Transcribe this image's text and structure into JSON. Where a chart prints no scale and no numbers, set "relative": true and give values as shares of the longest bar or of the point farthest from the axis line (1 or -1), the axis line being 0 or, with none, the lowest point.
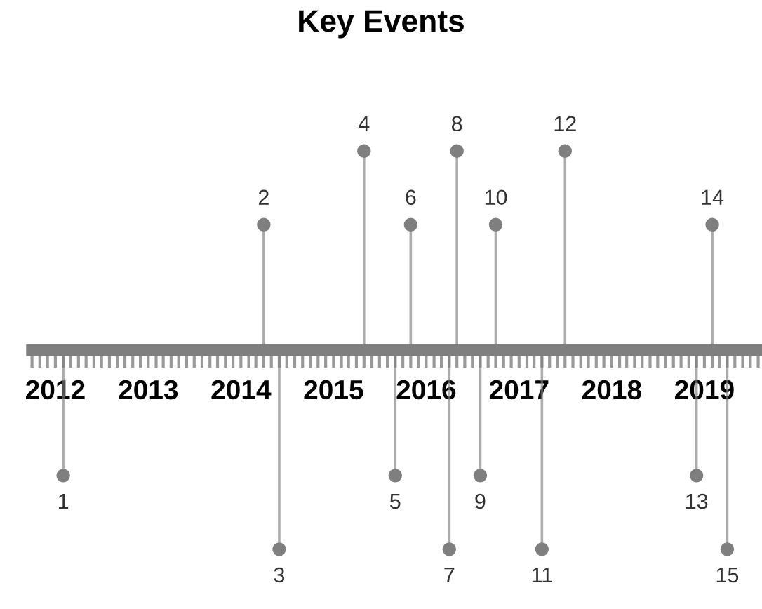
{
  "chart_data": {
    "type": "lollipop",
    "title": "Key Events",
    "relative": true,
    "x": [
      "2012-02",
      "2014-04",
      "2014-06",
      "2015-05",
      "2015-09",
      "2015-11",
      "2016-04",
      "2016-05",
      "2016-08",
      "2016-10",
      "2017-04",
      "2017-07",
      "2018-12",
      "2019-02",
      "2019-04"
    ],
    "values": [
      -0.63,
      0.63,
      -1,
      1,
      -0.63,
      0.63,
      -1,
      1,
      -0.63,
      0.63,
      -1,
      1,
      -0.63,
      0.63,
      -1
    ],
    "annotations": [
      {
        "text": "1",
        "x": "2012-02",
        "y": -0.63
      },
      {
        "text": "2",
        "x": "2014-04",
        "y": 0.63
      },
      {
        "text": "3",
        "x": "2014-06",
        "y": -1
      },
      {
        "text": "4",
        "x": "2015-05",
        "y": 1
      },
      {
        "text": "5",
        "x": "2015-09",
        "y": -0.63
      },
      {
        "text": "6",
        "x": "2015-11",
        "y": 0.63
      },
      {
        "text": "7",
        "x": "2016-04",
        "y": -1
      },
      {
        "text": "8",
        "x": "2016-05",
        "y": 1
      },
      {
        "text": "9",
        "x": "2016-08",
        "y": -0.63
      },
      {
        "text": "10",
        "x": "2016-10",
        "y": 0.63
      },
      {
        "text": "11",
        "x": "2017-04",
        "y": -1
      },
      {
        "text": "12",
        "x": "2017-07",
        "y": 1
      },
      {
        "text": "13",
        "x": "2018-12",
        "y": -0.63
      },
      {
        "text": "14",
        "x": "2019-02",
        "y": 0.63
      },
      {
        "text": "15",
        "x": "2019-04",
        "y": -1
      }
    ],
    "color": "#7f7f7f",
    "marker": "circle",
    "xlim": [
      "2011-10",
      "2019-08"
    ],
    "xticks": [
      {
        "value": "2012",
        "label": "2012"
      },
      {
        "value": "2013",
        "label": "2013"
      },
      {
        "value": "2014",
        "label": "2014"
      },
      {
        "value": "2015",
        "label": "2015"
      },
      {
        "value": "2016",
        "label": "2016"
      },
      {
        "value": "2017",
        "label": "2017"
      },
      {
        "value": "2018",
        "label": "2018"
      },
      {
        "value": "2019",
        "label": "2019"
      }
    ],
    "grid": false,
    "legend": false
  }
}
